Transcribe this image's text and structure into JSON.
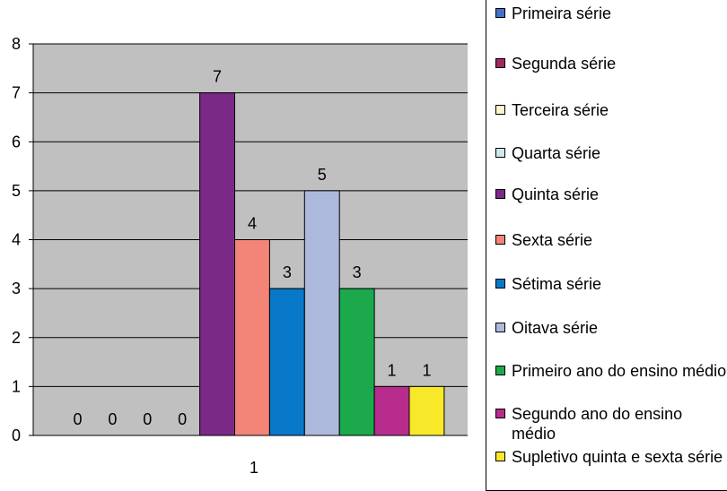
{
  "chart_data": {
    "type": "bar",
    "title": "",
    "xlabel": "",
    "ylabel": "",
    "categories": [
      "1"
    ],
    "ylim": [
      0,
      8
    ],
    "yticks": [
      0,
      1,
      2,
      3,
      4,
      5,
      6,
      7,
      8
    ],
    "grid": true,
    "legend_position": "right",
    "series": [
      {
        "name": "Primeira série",
        "values": [
          0
        ],
        "color": "#4472c4",
        "label": "0"
      },
      {
        "name": "Segunda série",
        "values": [
          0
        ],
        "color": "#a0285f",
        "label": "0"
      },
      {
        "name": "Terceira série",
        "values": [
          0
        ],
        "color": "#fff5cc",
        "label": "0"
      },
      {
        "name": "Quarta série",
        "values": [
          0
        ],
        "color": "#cdeaea",
        "label": "0"
      },
      {
        "name": "Quinta série",
        "values": [
          7
        ],
        "color": "#7b2987",
        "label": "7"
      },
      {
        "name": "Sexta série",
        "values": [
          4
        ],
        "color": "#f28478",
        "label": "4"
      },
      {
        "name": "Sétima série",
        "values": [
          3
        ],
        "color": "#0878c8",
        "label": "3"
      },
      {
        "name": "Oitava série",
        "values": [
          5
        ],
        "color": "#adb9dc",
        "label": "5"
      },
      {
        "name": "Primeiro ano do ensino médio",
        "values": [
          3
        ],
        "color": "#1ba94c",
        "label": "3"
      },
      {
        "name": "Segundo ano do ensino médio",
        "values": [
          1
        ],
        "color": "#b82c8e",
        "label": "1"
      },
      {
        "name": "Supletivo quinta e sexta série",
        "values": [
          1
        ],
        "color": "#f7e82a",
        "label": "1"
      }
    ]
  }
}
